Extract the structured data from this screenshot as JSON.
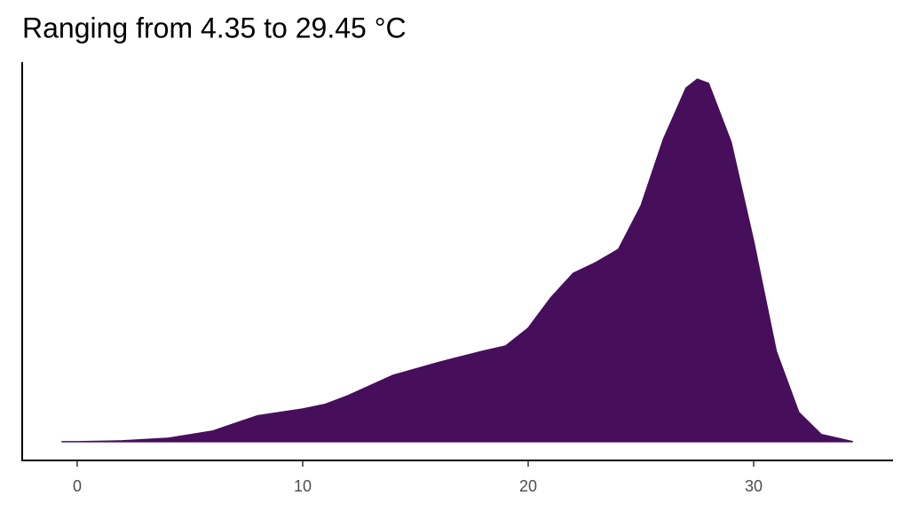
{
  "chart_data": {
    "type": "area",
    "title": "Ranging from 4.35 to 29.45 °C",
    "x": [
      -0.7,
      0,
      2,
      4,
      6,
      8,
      10,
      11,
      12,
      14,
      16,
      18,
      19,
      20,
      21,
      22,
      23,
      24,
      25,
      26,
      27,
      27.5,
      28,
      29,
      30,
      31,
      32,
      33,
      34.4
    ],
    "values": [
      0.0002,
      0.0002,
      0.0004,
      0.001,
      0.0027,
      0.0063,
      0.0079,
      0.009,
      0.011,
      0.0158,
      0.0188,
      0.0215,
      0.0227,
      0.0269,
      0.034,
      0.0398,
      0.0423,
      0.0454,
      0.0556,
      0.0713,
      0.0833,
      0.0854,
      0.0844,
      0.0706,
      0.0473,
      0.0215,
      0.0071,
      0.0019,
      0.0002
    ],
    "color": "#470e5c",
    "xlim": [
      -2.44,
      36.18
    ],
    "xticks": [
      0,
      10,
      20,
      30
    ],
    "ylim": [
      -0.0042,
      0.0894
    ]
  }
}
